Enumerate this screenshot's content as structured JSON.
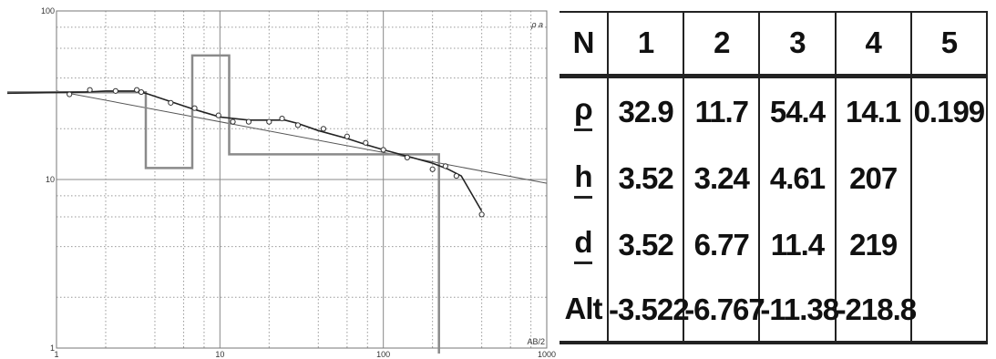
{
  "chart_data": {
    "type": "line",
    "xscale": "log",
    "yscale": "log",
    "xlim": [
      1,
      1000
    ],
    "ylim": [
      1,
      100
    ],
    "x_ticks": [
      "1",
      "10",
      "100",
      "1000"
    ],
    "y_ticks": [
      "1",
      "10",
      "100"
    ],
    "y_unit": "ρ a",
    "x_unit": "AB/2",
    "grid": true,
    "series": [
      {
        "values": {
          "x": [
            1.0,
            1.5,
            2.0,
            3.0,
            3.5,
            5.0,
            7.0,
            10.0,
            15.0,
            20.0,
            25.0,
            30.0,
            40.0,
            60.0,
            80.0,
            100.0,
            150.0,
            200.0,
            250.0,
            300.0,
            400.0
          ],
          "y": [
            32.5,
            33.0,
            33.5,
            33.5,
            32.5,
            29.0,
            26.0,
            23.5,
            22.5,
            22.5,
            22.5,
            21.5,
            19.5,
            17.5,
            16.0,
            15.0,
            13.5,
            12.5,
            11.5,
            10.5,
            6.5
          ]
        },
        "style": "smooth curve"
      },
      {
        "values": {
          "x": [
            1.2,
            1.6,
            2.3,
            3.1,
            3.3,
            5.0,
            7.0,
            9.8,
            12.0,
            15.0,
            20.0,
            24.0,
            30.0,
            43.0,
            60.0,
            78.0,
            100.0,
            140.0,
            200.0,
            240.0,
            280.0,
            400.0
          ],
          "y": [
            32.0,
            34.0,
            33.5,
            34.0,
            33.0,
            28.5,
            26.5,
            24.0,
            22.0,
            22.0,
            22.0,
            23.0,
            21.0,
            20.0,
            18.0,
            16.5,
            15.0,
            13.5,
            11.5,
            12.0,
            10.5,
            6.2
          ]
        },
        "style": "circles (measured)"
      },
      {
        "values": {
          "x": [
            0.001,
            3.52,
            3.52,
            6.77,
            6.77,
            11.4,
            11.4,
            219,
            219
          ],
          "y": [
            32.9,
            32.9,
            11.7,
            11.7,
            54.4,
            54.4,
            14.1,
            14.1,
            0.199
          ]
        },
        "style": "gray step (layered model)"
      },
      {
        "values": {
          "x": [
            1,
            1000
          ],
          "y": [
            33.5,
            9.5
          ]
        },
        "style": "thin diagonal line"
      }
    ]
  },
  "table": {
    "header": [
      "N",
      "1",
      "2",
      "3",
      "4",
      "5"
    ],
    "rows": [
      {
        "label": "ρ",
        "cells": [
          "32.9",
          "11.7",
          "54.4",
          "14.1",
          "0.199"
        ]
      },
      {
        "label": "h",
        "cells": [
          "3.52",
          "3.24",
          "4.61",
          "207",
          ""
        ]
      },
      {
        "label": "d",
        "cells": [
          "3.52",
          "6.77",
          "11.4",
          "219",
          ""
        ]
      },
      {
        "label": "Alt",
        "cells": [
          "-3.522",
          "-6.767",
          "-11.38",
          "-218.8",
          ""
        ]
      }
    ]
  }
}
